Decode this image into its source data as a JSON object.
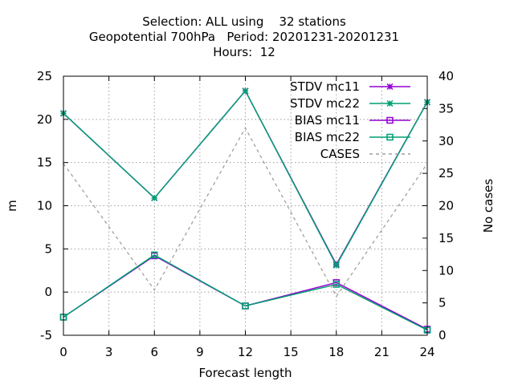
{
  "chart_data": {
    "type": "line",
    "title_lines": [
      "Selection: ALL using    32 stations",
      "Geopotential 700hPa   Period: 20201231-20201231",
      "Hours:  12"
    ],
    "xlabel": "Forecast length",
    "ylabel": "m",
    "y2label": "No cases",
    "x": [
      0,
      6,
      12,
      18,
      24
    ],
    "xlim": [
      0,
      24
    ],
    "xticks": [
      0,
      3,
      6,
      9,
      12,
      15,
      18,
      21,
      24
    ],
    "ylim": [
      -5,
      25
    ],
    "yticks": [
      -5,
      0,
      5,
      10,
      15,
      20,
      25
    ],
    "y2lim": [
      0,
      40
    ],
    "y2ticks": [
      0,
      5,
      10,
      15,
      20,
      25,
      30,
      35,
      40
    ],
    "grid": true,
    "legend_position": "top-right",
    "series": [
      {
        "name": "STDV mc11",
        "axis": "y1",
        "marker": "star",
        "dash": "solid",
        "color": "#9400d3",
        "values": [
          20.7,
          10.9,
          23.3,
          3.2,
          22.0
        ]
      },
      {
        "name": "STDV mc22",
        "axis": "y1",
        "marker": "star",
        "dash": "solid",
        "color": "#009e73",
        "values": [
          20.7,
          10.9,
          23.3,
          3.1,
          22.0
        ]
      },
      {
        "name": "BIAS mc11",
        "axis": "y1",
        "marker": "square",
        "dash": "solid",
        "color": "#9400d3",
        "values": [
          -2.9,
          4.2,
          -1.6,
          1.1,
          -4.3
        ]
      },
      {
        "name": "BIAS mc22",
        "axis": "y1",
        "marker": "square",
        "dash": "solid",
        "color": "#009e73",
        "values": [
          -2.9,
          4.3,
          -1.6,
          0.9,
          -4.4
        ]
      },
      {
        "name": "CASES",
        "axis": "y2",
        "marker": "none",
        "dash": "dashed",
        "color": "#a0a0a0",
        "values": [
          26.5,
          7,
          32,
          6,
          26.5
        ]
      }
    ]
  }
}
